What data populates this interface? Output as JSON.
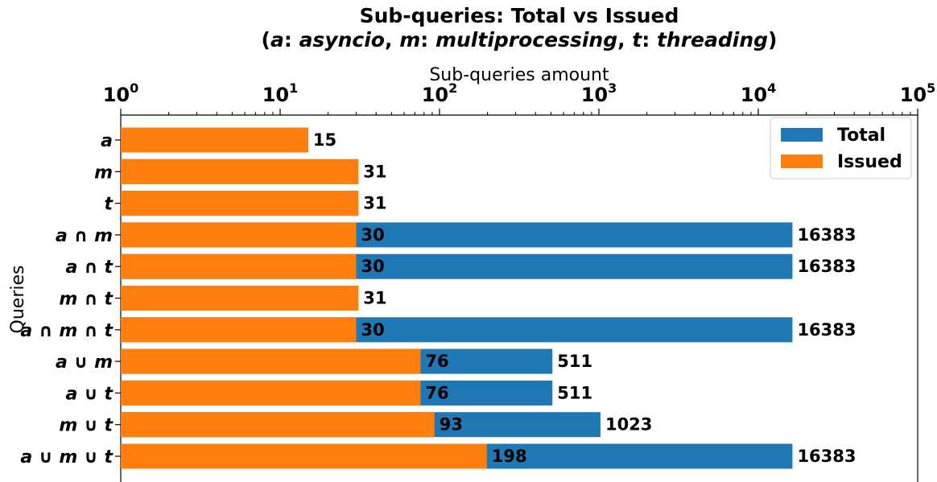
{
  "chart_data": {
    "type": "bar",
    "orientation": "horizontal",
    "title_line1": "Sub-queries: Total vs Issued",
    "title_line2": "(a: asyncio, m: multiprocessing, t: threading)",
    "xlabel": "Sub-queries amount",
    "ylabel": "Queries",
    "x_scale": "log",
    "x_axis_position": "top",
    "xlim": [
      1,
      100000
    ],
    "xticks": [
      {
        "value": 1,
        "base": "10",
        "exp": "0"
      },
      {
        "value": 10,
        "base": "10",
        "exp": "1"
      },
      {
        "value": 100,
        "base": "10",
        "exp": "2"
      },
      {
        "value": 1000,
        "base": "10",
        "exp": "3"
      },
      {
        "value": 10000,
        "base": "10",
        "exp": "4"
      },
      {
        "value": 100000,
        "base": "10",
        "exp": "5"
      }
    ],
    "grid": false,
    "legend_position": "top-right",
    "categories": [
      "a",
      "m",
      "t",
      "a ∩ m",
      "a ∩ t",
      "m ∩ t",
      "a ∩ m ∩ t",
      "a ∪ m",
      "a ∪ t",
      "m ∪ t",
      "a ∪ m ∪ t"
    ],
    "series": [
      {
        "name": "Total",
        "color": "#1f77b4",
        "values": [
          15,
          31,
          31,
          16383,
          16383,
          31,
          16383,
          511,
          511,
          1023,
          16383
        ]
      },
      {
        "name": "Issued",
        "color": "#ff7f0e",
        "values": [
          15,
          31,
          31,
          30,
          30,
          31,
          30,
          76,
          76,
          93,
          198
        ]
      }
    ]
  }
}
